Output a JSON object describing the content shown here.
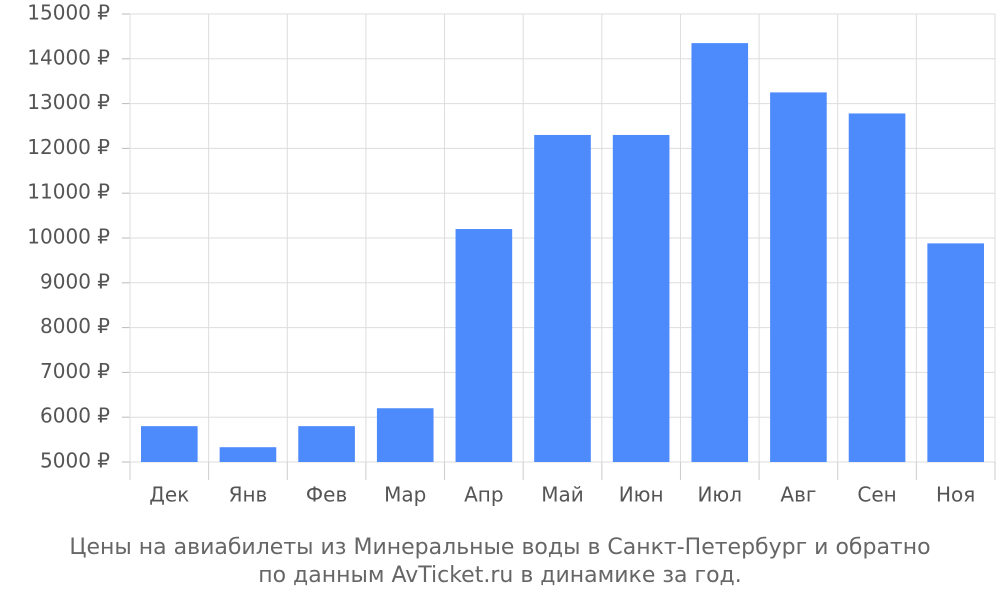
{
  "chart_data": {
    "type": "bar",
    "title": [
      "Цены на авиабилеты из Минеральные воды в Санкт-Петербург и обратно",
      "по данным AvTicket.ru в динамике за год."
    ],
    "categories": [
      "Дек",
      "Янв",
      "Фев",
      "Мар",
      "Апр",
      "Май",
      "Июн",
      "Июл",
      "Авг",
      "Сен",
      "Ноя"
    ],
    "values": [
      5800,
      5330,
      5800,
      6200,
      10200,
      12300,
      12300,
      14350,
      13250,
      12780,
      9880
    ],
    "color": "#4d8afb",
    "ylim": [
      5000,
      15000
    ],
    "yticks": [
      {
        "value": 5000,
        "label": "5000 ₽"
      },
      {
        "value": 6000,
        "label": "6000 ₽"
      },
      {
        "value": 7000,
        "label": "7000 ₽"
      },
      {
        "value": 8000,
        "label": "8000 ₽"
      },
      {
        "value": 9000,
        "label": "9000 ₽"
      },
      {
        "value": 10000,
        "label": "10000 ₽"
      },
      {
        "value": 11000,
        "label": "11000 ₽"
      },
      {
        "value": 12000,
        "label": "12000 ₽"
      },
      {
        "value": 13000,
        "label": "13000 ₽"
      },
      {
        "value": 14000,
        "label": "14000 ₽"
      },
      {
        "value": 15000,
        "label": "15000 ₽"
      }
    ],
    "grid": true
  }
}
